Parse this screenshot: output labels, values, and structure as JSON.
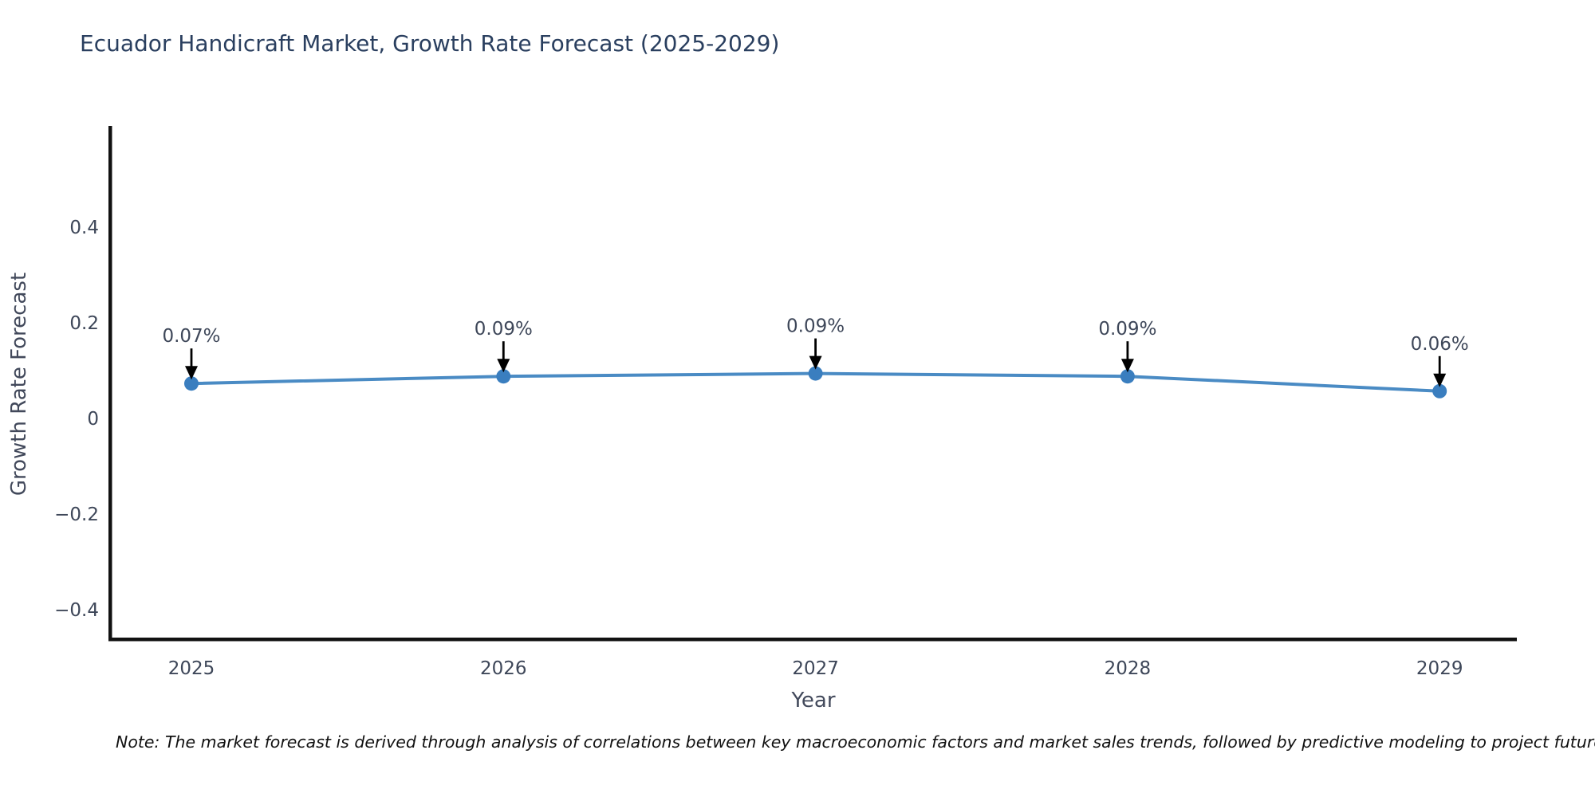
{
  "title": "Ecuador Handicraft Market, Growth Rate Forecast (2025-2029)",
  "note": "Note: The market forecast is derived through analysis of correlations between key macroeconomic factors and market sales trends, followed by predictive modeling to project future sa",
  "chart_data": {
    "type": "line",
    "title": "Ecuador Handicraft Market, Growth Rate Forecast (2025-2029)",
    "xlabel": "Year",
    "ylabel": "Growth Rate Forecast",
    "x": [
      2025,
      2026,
      2027,
      2028,
      2029
    ],
    "values": [
      0.07,
      0.09,
      0.09,
      0.09,
      0.06
    ],
    "values_precise": [
      0.073,
      0.088,
      0.094,
      0.088,
      0.057
    ],
    "point_labels": [
      "0.07%",
      "0.09%",
      "0.09%",
      "0.09%",
      "0.06%"
    ],
    "yticks": [
      0.4,
      0.2,
      0,
      -0.2,
      -0.4
    ],
    "ytick_labels": [
      "0.4",
      "0.2",
      "0",
      "−0.2",
      "−0.4"
    ],
    "ylim": [
      -0.46,
      0.61
    ],
    "grid": false,
    "legend": null,
    "annotations_have_arrows": true,
    "colors": {
      "line": "#4a8bc4",
      "marker": "#3a7ebf",
      "arrow": "#000000",
      "spine": "#111111",
      "title_text": "#2a3f5f",
      "tick_text": "#3e4759"
    }
  }
}
